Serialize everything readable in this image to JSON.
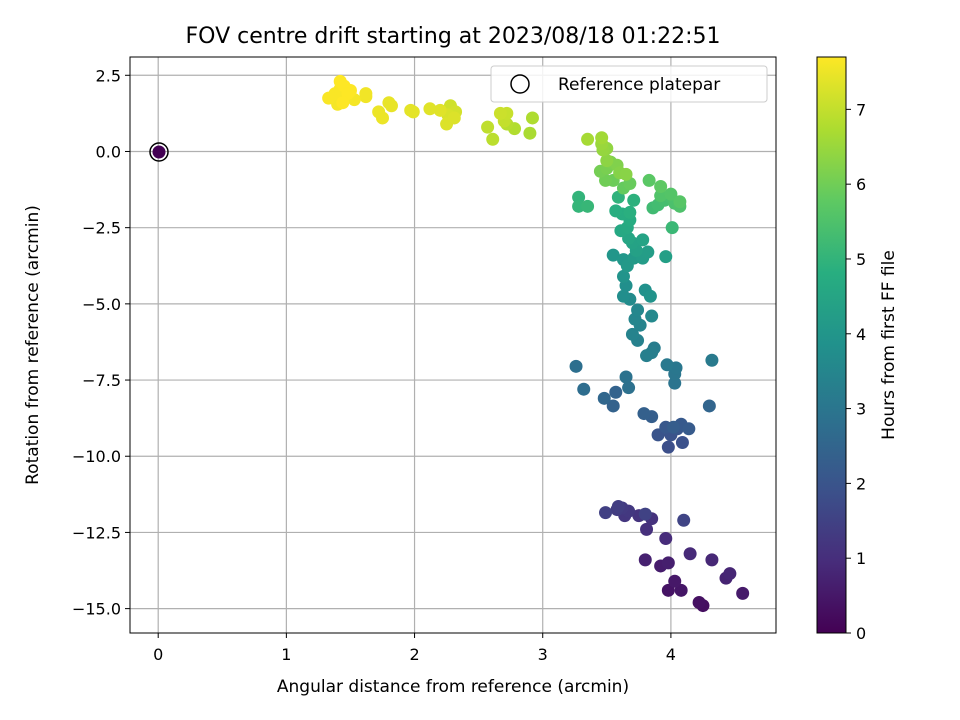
{
  "chart_data": {
    "type": "scatter",
    "title": "FOV centre drift starting at 2023/08/18 01:22:51",
    "xlabel": "Angular distance from reference (arcmin)",
    "ylabel": "Rotation from reference (arcmin)",
    "xlim": [
      -0.22,
      4.82
    ],
    "ylim": [
      -15.8,
      3.1
    ],
    "xticks": [
      0,
      1,
      2,
      3,
      4
    ],
    "xtick_labels": [
      "0",
      "1",
      "2",
      "3",
      "4"
    ],
    "yticks": [
      2.5,
      0.0,
      -2.5,
      -5.0,
      -7.5,
      -10.0,
      -12.5,
      -15.0
    ],
    "ytick_labels": [
      "2.5",
      "0.0",
      "−2.5",
      "−5.0",
      "−7.5",
      "−10.0",
      "−12.5",
      "−15.0"
    ],
    "grid": true,
    "legend": {
      "position": "top-right",
      "entries": [
        "Reference platepar"
      ]
    },
    "reference_point": {
      "x": 0,
      "y": 0,
      "label": "Reference platepar",
      "color": "#440154"
    },
    "colorbar": {
      "label": "Hours from first FF file",
      "min": 0,
      "max": 7.7,
      "ticks": [
        0,
        1,
        2,
        3,
        4,
        5,
        6,
        7
      ],
      "tick_labels": [
        "0",
        "1",
        "2",
        "3",
        "4",
        "5",
        "6",
        "7"
      ],
      "colormap": "viridis"
    },
    "series": [
      {
        "points": [
          [
            4.25,
            -14.9,
            0.3
          ],
          [
            4.22,
            -14.8,
            0.35
          ],
          [
            3.98,
            -14.4,
            0.4
          ],
          [
            4.08,
            -14.4,
            0.45
          ],
          [
            4.03,
            -14.1,
            0.5
          ],
          [
            4.56,
            -14.5,
            0.55
          ],
          [
            3.92,
            -13.6,
            0.6
          ],
          [
            3.98,
            -13.5,
            0.65
          ],
          [
            3.8,
            -13.4,
            0.7
          ],
          [
            4.43,
            -14.0,
            0.75
          ],
          [
            4.46,
            -13.85,
            0.8
          ],
          [
            4.32,
            -13.4,
            0.85
          ],
          [
            4.15,
            -13.2,
            0.9
          ],
          [
            3.96,
            -12.7,
            0.95
          ],
          [
            3.81,
            -12.4,
            1.05
          ],
          [
            3.85,
            -12.05,
            1.1
          ],
          [
            3.75,
            -11.95,
            1.15
          ],
          [
            3.64,
            -11.95,
            1.2
          ],
          [
            3.67,
            -11.8,
            1.25
          ],
          [
            3.62,
            -11.7,
            1.3
          ],
          [
            3.58,
            -11.75,
            1.35
          ],
          [
            3.59,
            -11.65,
            1.4
          ],
          [
            3.49,
            -11.85,
            1.45
          ],
          [
            3.8,
            -11.9,
            1.5
          ],
          [
            4.1,
            -12.1,
            1.55
          ],
          [
            3.98,
            -9.7,
            1.85
          ],
          [
            4.09,
            -9.55,
            1.9
          ],
          [
            4.0,
            -9.3,
            1.95
          ],
          [
            3.9,
            -9.3,
            2.0
          ],
          [
            4.05,
            -9.1,
            2.05
          ],
          [
            3.96,
            -9.05,
            2.1
          ],
          [
            4.08,
            -8.95,
            2.15
          ],
          [
            4.14,
            -9.1,
            2.2
          ],
          [
            4.02,
            -9.05,
            2.25
          ],
          [
            3.85,
            -8.7,
            2.3
          ],
          [
            3.79,
            -8.6,
            2.35
          ],
          [
            3.55,
            -8.35,
            2.4
          ],
          [
            3.57,
            -7.9,
            2.45
          ],
          [
            4.3,
            -8.35,
            2.5
          ],
          [
            3.48,
            -8.1,
            2.55
          ],
          [
            3.32,
            -7.8,
            2.75
          ],
          [
            3.26,
            -7.05,
            2.8
          ],
          [
            3.67,
            -7.75,
            2.85
          ],
          [
            3.65,
            -7.4,
            2.9
          ],
          [
            4.03,
            -7.6,
            2.95
          ],
          [
            4.03,
            -7.3,
            3.0
          ],
          [
            4.04,
            -7.1,
            3.05
          ],
          [
            3.97,
            -7.0,
            3.1
          ],
          [
            4.32,
            -6.85,
            3.15
          ],
          [
            3.87,
            -6.45,
            3.2
          ],
          [
            3.85,
            -6.6,
            3.25
          ],
          [
            3.81,
            -6.7,
            3.3
          ],
          [
            3.74,
            -6.2,
            3.35
          ],
          [
            3.7,
            -6.0,
            3.4
          ],
          [
            3.76,
            -5.7,
            3.45
          ],
          [
            3.72,
            -5.5,
            3.5
          ],
          [
            3.74,
            -5.2,
            3.55
          ],
          [
            3.85,
            -5.4,
            3.6
          ],
          [
            3.68,
            -4.85,
            3.65
          ],
          [
            3.63,
            -4.75,
            3.75
          ],
          [
            3.65,
            -4.4,
            3.8
          ],
          [
            3.8,
            -4.55,
            3.85
          ],
          [
            3.84,
            -4.75,
            3.9
          ],
          [
            3.63,
            -4.1,
            3.95
          ],
          [
            3.55,
            -3.4,
            4.0
          ],
          [
            3.63,
            -3.55,
            4.05
          ],
          [
            3.66,
            -3.75,
            4.1
          ],
          [
            3.71,
            -3.5,
            4.15
          ],
          [
            3.78,
            -3.5,
            4.2
          ],
          [
            3.82,
            -3.3,
            4.25
          ],
          [
            3.96,
            -3.45,
            4.3
          ],
          [
            3.73,
            -3.25,
            4.35
          ],
          [
            3.7,
            -3.0,
            4.4
          ],
          [
            3.78,
            -2.9,
            4.45
          ],
          [
            3.67,
            -2.85,
            4.5
          ],
          [
            3.61,
            -2.6,
            4.6
          ],
          [
            3.66,
            -2.5,
            4.65
          ],
          [
            3.68,
            -2.25,
            4.7
          ],
          [
            3.62,
            -2.05,
            4.75
          ],
          [
            3.57,
            -1.95,
            4.8
          ],
          [
            3.68,
            -2.0,
            4.85
          ],
          [
            3.71,
            -1.6,
            4.9
          ],
          [
            3.59,
            -1.5,
            4.95
          ],
          [
            3.28,
            -1.5,
            5.0
          ],
          [
            3.28,
            -1.8,
            5.05
          ],
          [
            3.35,
            -1.8,
            5.1
          ],
          [
            4.01,
            -2.5,
            5.15
          ],
          [
            3.86,
            -1.85,
            5.25
          ],
          [
            3.9,
            -1.75,
            5.3
          ],
          [
            3.95,
            -1.6,
            5.35
          ],
          [
            4.0,
            -1.5,
            5.4
          ],
          [
            4.03,
            -1.7,
            5.45
          ],
          [
            4.07,
            -1.8,
            5.5
          ],
          [
            3.92,
            -1.45,
            5.55
          ],
          [
            4.0,
            -1.4,
            5.6
          ],
          [
            4.07,
            -1.65,
            5.65
          ],
          [
            3.83,
            -0.95,
            5.7
          ],
          [
            3.92,
            -1.15,
            5.75
          ],
          [
            3.63,
            -1.2,
            5.85
          ],
          [
            3.68,
            -1.05,
            5.9
          ],
          [
            3.55,
            -0.95,
            5.95
          ],
          [
            3.49,
            -0.95,
            6.0
          ],
          [
            3.45,
            -0.65,
            6.05
          ],
          [
            3.5,
            -0.55,
            6.1
          ],
          [
            3.53,
            -0.35,
            6.15
          ],
          [
            3.58,
            -0.45,
            6.2
          ],
          [
            3.6,
            -0.7,
            6.25
          ],
          [
            3.65,
            -0.75,
            6.3
          ],
          [
            3.5,
            -0.3,
            6.35
          ],
          [
            3.5,
            0.1,
            6.4
          ],
          [
            3.47,
            0.05,
            6.45
          ],
          [
            3.46,
            0.25,
            6.5
          ],
          [
            3.46,
            0.45,
            6.6
          ],
          [
            3.35,
            0.4,
            6.65
          ],
          [
            2.9,
            0.6,
            6.7
          ],
          [
            2.92,
            1.1,
            6.75
          ],
          [
            2.78,
            0.75,
            6.8
          ],
          [
            2.72,
            0.9,
            6.85
          ],
          [
            2.61,
            0.4,
            6.9
          ],
          [
            2.57,
            0.8,
            6.95
          ],
          [
            2.7,
            1.0,
            7.0
          ],
          [
            2.72,
            1.25,
            7.05
          ],
          [
            2.67,
            1.25,
            7.1
          ],
          [
            2.28,
            1.5,
            7.15
          ],
          [
            2.32,
            1.3,
            7.2
          ],
          [
            2.26,
            1.2,
            7.25
          ],
          [
            2.25,
            0.9,
            7.3
          ],
          [
            2.31,
            1.1,
            7.3
          ],
          [
            2.2,
            1.35,
            7.35
          ],
          [
            2.12,
            1.4,
            7.35
          ],
          [
            1.99,
            1.3,
            7.4
          ],
          [
            1.97,
            1.35,
            7.4
          ],
          [
            1.82,
            1.5,
            7.45
          ],
          [
            1.8,
            1.6,
            7.45
          ],
          [
            1.75,
            1.1,
            7.5
          ],
          [
            1.72,
            1.3,
            7.5
          ],
          [
            1.62,
            1.8,
            7.55
          ],
          [
            1.62,
            1.9,
            7.55
          ],
          [
            1.53,
            1.7,
            7.6
          ],
          [
            1.45,
            1.75,
            7.6
          ],
          [
            1.4,
            1.55,
            7.6
          ],
          [
            1.33,
            1.75,
            7.65
          ],
          [
            1.38,
            1.9,
            7.65
          ],
          [
            1.42,
            2.05,
            7.65
          ],
          [
            1.42,
            2.3,
            7.7
          ],
          [
            1.45,
            2.15,
            7.7
          ],
          [
            1.5,
            2.0,
            7.7
          ],
          [
            1.48,
            1.9,
            7.7
          ],
          [
            1.44,
            1.6,
            7.7
          ]
        ]
      }
    ]
  }
}
